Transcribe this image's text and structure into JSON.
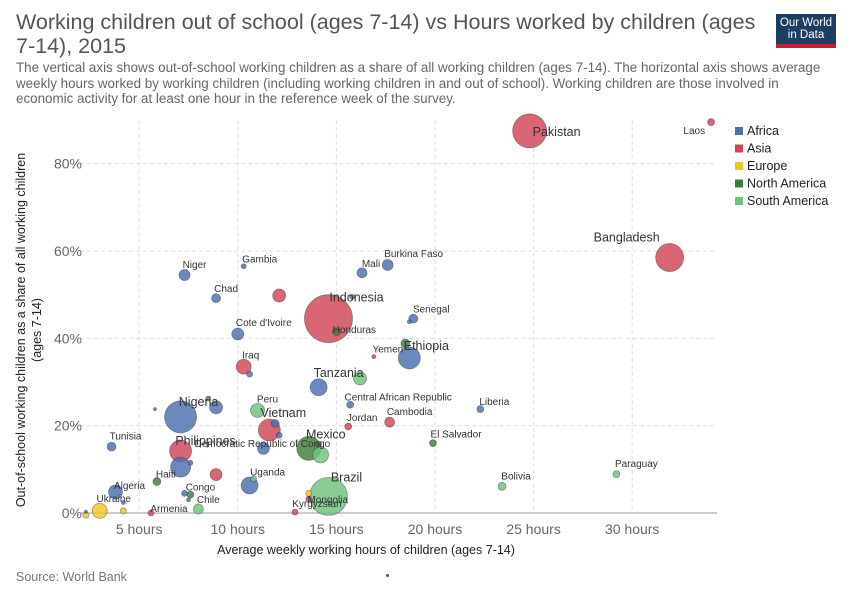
{
  "header": {
    "title": "Working children out of school (ages 7-14) vs Hours worked by children (ages 7-14), 2015",
    "subtitle": "The vertical axis shows out-of-school working children as a share of all working children (ages 7-14). The horizontal axis shows average weekly hours worked by working children (including working children in and out of school). Working children are those involved in economic activity for at least one hour in the reference week of the survey.",
    "logo_line1": "Our World",
    "logo_line2": "in Data"
  },
  "footer": {
    "source": "Source: World Bank"
  },
  "chart_data": {
    "type": "scatter",
    "xlabel": "Average weekly working hours of children (ages 7-14)",
    "ylabel": "Out-of-school working children as a share of all working children (ages 7-14)",
    "ylabel_line1": "Out-of-school working children as a share of all working children",
    "ylabel_line2": "(ages 7-14)",
    "xlim": [
      2,
      34.3
    ],
    "ylim": [
      0,
      90
    ],
    "x_ticks": [
      5,
      10,
      15,
      20,
      25,
      30
    ],
    "x_tick_labels": [
      "5 hours",
      "10 hours",
      "15 hours",
      "20 hours",
      "25 hours",
      "30 hours"
    ],
    "y_ticks": [
      0,
      20,
      40,
      60,
      80
    ],
    "y_tick_labels": [
      "0%",
      "20%",
      "40%",
      "60%",
      "80%"
    ],
    "grid": true,
    "legend_position": "top-right",
    "legend": [
      {
        "name": "Africa",
        "color": "#4c6fb0"
      },
      {
        "name": "Asia",
        "color": "#cf4455"
      },
      {
        "name": "Europe",
        "color": "#f2c620"
      },
      {
        "name": "North America",
        "color": "#3e7d3b"
      },
      {
        "name": "South America",
        "color": "#6ec27d"
      }
    ],
    "points": [
      {
        "name": "Pakistan",
        "x": 24.8,
        "y": 87.5,
        "region": "Asia",
        "size": 17
      },
      {
        "name": "Laos",
        "x": 34.0,
        "y": 89.5,
        "region": "Asia",
        "size": 3.5
      },
      {
        "name": "Bangladesh",
        "x": 31.9,
        "y": 58.5,
        "region": "Asia",
        "size": 14
      },
      {
        "name": "Indonesia",
        "x": 14.6,
        "y": 44.5,
        "region": "Asia",
        "size": 24
      },
      {
        "name": "Honduras",
        "x": 15.0,
        "y": 41.5,
        "region": "North America",
        "size": 4
      },
      {
        "name": "",
        "x": 15.8,
        "y": 49.5,
        "region": "Africa",
        "size": 2.5
      },
      {
        "name": "",
        "x": 12.1,
        "y": 49.8,
        "region": "Asia",
        "size": 6.5
      },
      {
        "name": "Gambia",
        "x": 10.3,
        "y": 56.5,
        "region": "Africa",
        "size": 2.5
      },
      {
        "name": "Niger",
        "x": 7.3,
        "y": 54.5,
        "region": "Africa",
        "size": 5.5
      },
      {
        "name": "Chad",
        "x": 8.9,
        "y": 49.2,
        "region": "Africa",
        "size": 4.5
      },
      {
        "name": "Mali",
        "x": 16.3,
        "y": 55.0,
        "region": "Africa",
        "size": 5
      },
      {
        "name": "Burkina Faso",
        "x": 17.6,
        "y": 56.8,
        "region": "Africa",
        "size": 5.5
      },
      {
        "name": "Senegal",
        "x": 18.9,
        "y": 44.5,
        "region": "Africa",
        "size": 4.5
      },
      {
        "name": "",
        "x": 18.7,
        "y": 43.8,
        "region": "Africa",
        "size": 2
      },
      {
        "name": "Cote d'Ivoire",
        "x": 10.0,
        "y": 41.0,
        "region": "Africa",
        "size": 6
      },
      {
        "name": "Ethiopia",
        "x": 18.7,
        "y": 35.5,
        "region": "Africa",
        "size": 11
      },
      {
        "name": "",
        "x": 18.5,
        "y": 38.8,
        "region": "North America",
        "size": 4.5
      },
      {
        "name": "Yemen",
        "x": 16.9,
        "y": 35.8,
        "region": "Asia",
        "size": 2
      },
      {
        "name": "Iraq",
        "x": 10.3,
        "y": 33.5,
        "region": "Asia",
        "size": 7.5
      },
      {
        "name": "",
        "x": 10.6,
        "y": 31.8,
        "region": "Africa",
        "size": 3
      },
      {
        "name": "Tanzania",
        "x": 14.1,
        "y": 28.8,
        "region": "Africa",
        "size": 8.5
      },
      {
        "name": "",
        "x": 16.2,
        "y": 30.8,
        "region": "South America",
        "size": 6.5
      },
      {
        "name": "Central African Republic",
        "x": 15.7,
        "y": 24.8,
        "region": "Africa",
        "size": 3.5
      },
      {
        "name": "Liberia",
        "x": 22.3,
        "y": 23.8,
        "region": "Africa",
        "size": 3.5
      },
      {
        "name": "Nigeria",
        "x": 7.1,
        "y": 22.0,
        "region": "Africa",
        "size": 16
      },
      {
        "name": "",
        "x": 5.8,
        "y": 23.8,
        "region": "Africa",
        "size": 1.5
      },
      {
        "name": "",
        "x": 8.5,
        "y": 26.2,
        "region": "Africa",
        "size": 2.5
      },
      {
        "name": "",
        "x": 8.9,
        "y": 24.2,
        "region": "Africa",
        "size": 6.5
      },
      {
        "name": "Peru",
        "x": 11.0,
        "y": 23.5,
        "region": "South America",
        "size": 7
      },
      {
        "name": "Jordan",
        "x": 15.6,
        "y": 19.8,
        "region": "Asia",
        "size": 3.5
      },
      {
        "name": "Cambodia",
        "x": 17.7,
        "y": 20.8,
        "region": "Asia",
        "size": 5
      },
      {
        "name": "Vietnam",
        "x": 11.6,
        "y": 19.0,
        "region": "Asia",
        "size": 11
      },
      {
        "name": "",
        "x": 11.9,
        "y": 20.5,
        "region": "Africa",
        "size": 4
      },
      {
        "name": "",
        "x": 12.1,
        "y": 17.8,
        "region": "Africa",
        "size": 3
      },
      {
        "name": "Mexico",
        "x": 13.6,
        "y": 14.8,
        "region": "North America",
        "size": 12
      },
      {
        "name": "",
        "x": 14.2,
        "y": 13.3,
        "region": "South America",
        "size": 8
      },
      {
        "name": "",
        "x": 14.1,
        "y": 15.8,
        "region": "North America",
        "size": 3
      },
      {
        "name": "",
        "x": 11.3,
        "y": 14.8,
        "region": "Africa",
        "size": 6
      },
      {
        "name": "El Salvador",
        "x": 19.9,
        "y": 16.0,
        "region": "North America",
        "size": 3.5
      },
      {
        "name": "Tunisia",
        "x": 3.6,
        "y": 15.2,
        "region": "Africa",
        "size": 4.5
      },
      {
        "name": "Philippines",
        "x": 7.1,
        "y": 14.2,
        "region": "Asia",
        "size": 11
      },
      {
        "name": "Democratic Republic of Congo",
        "x": 7.1,
        "y": 10.5,
        "region": "Africa",
        "size": 10
      },
      {
        "name": "",
        "x": 7.6,
        "y": 11.5,
        "region": "Africa",
        "size": 2.5
      },
      {
        "name": "",
        "x": 8.9,
        "y": 8.8,
        "region": "Asia",
        "size": 6
      },
      {
        "name": "Uganda",
        "x": 10.6,
        "y": 6.3,
        "region": "Africa",
        "size": 8.5
      },
      {
        "name": "",
        "x": 10.8,
        "y": 7.8,
        "region": "South America",
        "size": 3
      },
      {
        "name": "Brazil",
        "x": 14.6,
        "y": 3.8,
        "region": "South America",
        "size": 19
      },
      {
        "name": "Haiti",
        "x": 5.9,
        "y": 7.2,
        "region": "North America",
        "size": 4
      },
      {
        "name": "Algeria",
        "x": 3.8,
        "y": 4.8,
        "region": "Africa",
        "size": 7
      },
      {
        "name": "Congo",
        "x": 7.6,
        "y": 4.2,
        "region": "North America",
        "size": 3.5
      },
      {
        "name": "",
        "x": 7.3,
        "y": 4.5,
        "region": "Africa",
        "size": 3
      },
      {
        "name": "Chile",
        "x": 8.0,
        "y": 0.9,
        "region": "South America",
        "size": 5
      },
      {
        "name": "",
        "x": 7.5,
        "y": 3.0,
        "region": "Africa",
        "size": 2
      },
      {
        "name": "Mongolia",
        "x": 13.6,
        "y": 3.2,
        "region": "Asia",
        "size": 3
      },
      {
        "name": "",
        "x": 13.6,
        "y": 4.5,
        "region": "Europe",
        "size": 3
      },
      {
        "name": "Kyrgyzstan",
        "x": 12.9,
        "y": 0.2,
        "region": "Asia",
        "size": 3
      },
      {
        "name": "Armenia",
        "x": 5.6,
        "y": 0.0,
        "region": "Asia",
        "size": 3
      },
      {
        "name": "Ukraine",
        "x": 3.0,
        "y": 0.5,
        "region": "Europe",
        "size": 7.5
      },
      {
        "name": "",
        "x": 4.2,
        "y": 0.5,
        "region": "Europe",
        "size": 3
      },
      {
        "name": "",
        "x": 4.2,
        "y": 2.4,
        "region": "Africa",
        "size": 2
      },
      {
        "name": "",
        "x": 2.3,
        "y": -0.5,
        "region": "Europe",
        "size": 3
      },
      {
        "name": "",
        "x": 2.3,
        "y": 0.3,
        "region": "Africa",
        "size": 1.5
      },
      {
        "name": "Bolivia",
        "x": 23.4,
        "y": 6.1,
        "region": "South America",
        "size": 4
      },
      {
        "name": "Paraguay",
        "x": 29.2,
        "y": 8.9,
        "region": "South America",
        "size": 3.5
      }
    ],
    "big_labels": [
      "Pakistan",
      "Bangladesh",
      "Indonesia",
      "Nigeria",
      "Brazil",
      "Philippines",
      "Mexico",
      "Vietnam",
      "Ethiopia",
      "Tanzania"
    ]
  }
}
